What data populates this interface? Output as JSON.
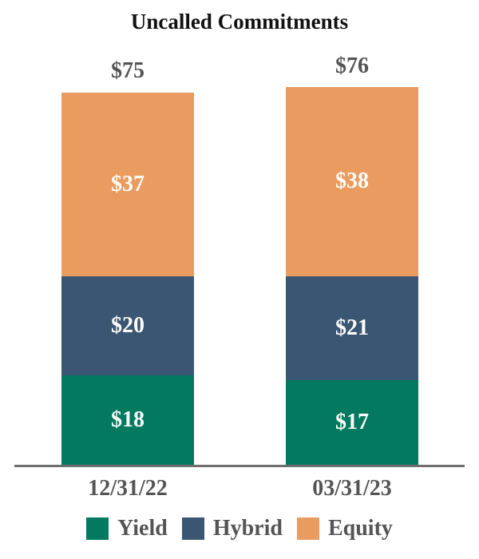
{
  "title": "Uncalled Commitments",
  "colors": {
    "yield_green": "#037A60",
    "hybrid_blue": "#3B5672",
    "equity_orange": "#EA9B60",
    "axis_gray": "#6E6E6E",
    "label_gray": "#545454",
    "segment_text": "#FDFDFB",
    "title_black": "#111111"
  },
  "chart_data": {
    "type": "bar",
    "stacked": true,
    "title": "Uncalled Commitments",
    "categories": [
      "12/31/22",
      "03/31/23"
    ],
    "series": [
      {
        "name": "Yield",
        "color": "#037A60",
        "values": [
          18,
          17
        ],
        "labels": [
          "$18",
          "$17"
        ]
      },
      {
        "name": "Hybrid",
        "color": "#3B5672",
        "values": [
          20,
          21
        ],
        "labels": [
          "$20",
          "$21"
        ]
      },
      {
        "name": "Equity",
        "color": "#EA9B60",
        "values": [
          37,
          38
        ],
        "labels": [
          "$37",
          "$38"
        ]
      }
    ],
    "totals": [
      75,
      76
    ],
    "total_labels": [
      "$75",
      "$76"
    ],
    "value_prefix": "$",
    "xlabel": "",
    "ylabel": "",
    "ylim": [
      0,
      80
    ],
    "grid": false,
    "legend_position": "bottom"
  },
  "legend": {
    "items": [
      {
        "label": "Yield",
        "color": "#037A60"
      },
      {
        "label": "Hybrid",
        "color": "#3B5672"
      },
      {
        "label": "Equity",
        "color": "#EA9B60"
      }
    ]
  }
}
